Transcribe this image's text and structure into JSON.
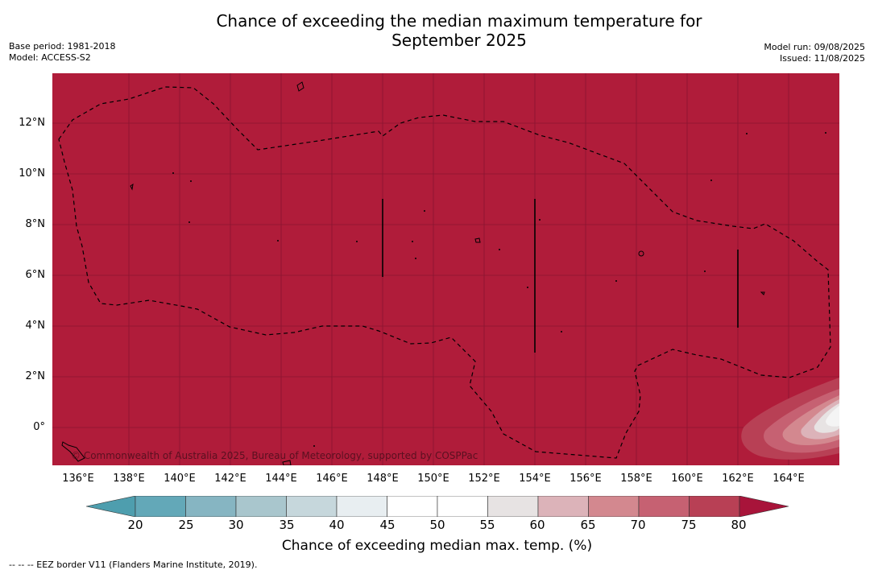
{
  "title_line1": "Chance of exceeding the median maximum temperature for",
  "title_line2": "September 2025",
  "meta_left": {
    "base_period": "Base period: 1981-2018",
    "model": "Model: ACCESS-S2"
  },
  "meta_right": {
    "model_run": "Model run: 09/08/2025",
    "issued": "Issued: 11/08/2025"
  },
  "map": {
    "copyright": "© Commonwealth of Australia 2025, Bureau of Meteorology, supported by COSPPac",
    "latitude_labels": [
      "12°N",
      "10°N",
      "8°N",
      "6°N",
      "4°N",
      "2°N",
      "0°"
    ],
    "longitude_labels": [
      "136°E",
      "138°E",
      "140°E",
      "142°E",
      "144°E",
      "146°E",
      "148°E",
      "150°E",
      "152°E",
      "154°E",
      "156°E",
      "158°E",
      "160°E",
      "162°E",
      "164°E"
    ],
    "fill_color": "#b01c3a"
  },
  "colorbar": {
    "ticks": [
      "20",
      "25",
      "30",
      "35",
      "40",
      "45",
      "50",
      "55",
      "60",
      "65",
      "70",
      "75",
      "80"
    ],
    "colors": [
      "#63a8b8",
      "#86b5c2",
      "#a9c6cd",
      "#c6d7dc",
      "#e8eef1",
      "#ffffff",
      "#ffffff",
      "#e7e3e3",
      "#dcb3b9",
      "#d3888f",
      "#c66172",
      "#b84055"
    ],
    "under_color": "#4e9eae",
    "over_color": "#a8143a",
    "label": "Chance of exceeding median max. temp. (%)"
  },
  "footnote": "--  --  -- EEZ border V11 (Flanders Marine Institute, 2019)."
}
